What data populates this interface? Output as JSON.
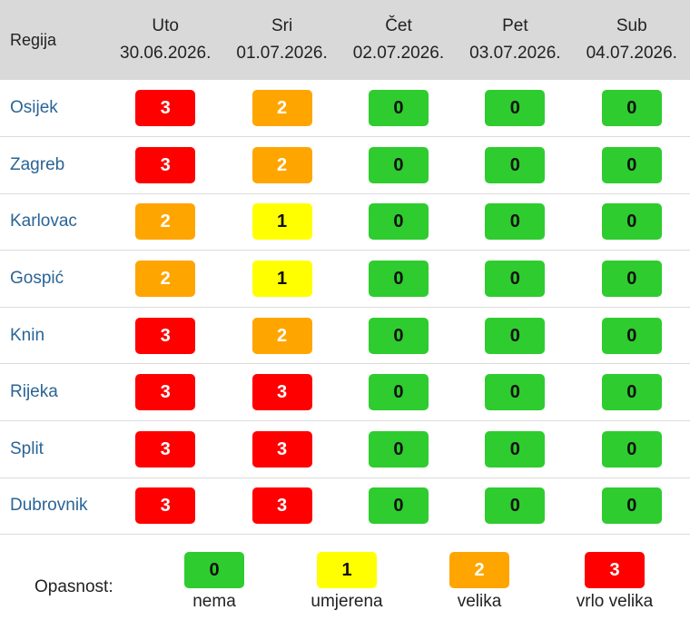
{
  "table": {
    "region_header": "Regija",
    "days": [
      {
        "name": "Uto",
        "date": "30.06.2026."
      },
      {
        "name": "Sri",
        "date": "01.07.2026."
      },
      {
        "name": "Čet",
        "date": "02.07.2026."
      },
      {
        "name": "Pet",
        "date": "03.07.2026."
      },
      {
        "name": "Sub",
        "date": "04.07.2026."
      }
    ],
    "rows": [
      {
        "region": "Osijek",
        "levels": [
          "3",
          "2",
          "0",
          "0",
          "0"
        ]
      },
      {
        "region": "Zagreb",
        "levels": [
          "3",
          "2",
          "0",
          "0",
          "0"
        ]
      },
      {
        "region": "Karlovac",
        "levels": [
          "2",
          "1",
          "0",
          "0",
          "0"
        ]
      },
      {
        "region": "Gospić",
        "levels": [
          "2",
          "1",
          "0",
          "0",
          "0"
        ]
      },
      {
        "region": "Knin",
        "levels": [
          "3",
          "2",
          "0",
          "0",
          "0"
        ]
      },
      {
        "region": "Rijeka",
        "levels": [
          "3",
          "3",
          "0",
          "0",
          "0"
        ]
      },
      {
        "region": "Split",
        "levels": [
          "3",
          "3",
          "0",
          "0",
          "0"
        ]
      },
      {
        "region": "Dubrovnik",
        "levels": [
          "3",
          "3",
          "0",
          "0",
          "0"
        ]
      }
    ]
  },
  "legend": {
    "label": "Opasnost:",
    "items": [
      {
        "value": "0",
        "text": "nema"
      },
      {
        "value": "1",
        "text": "umjerena"
      },
      {
        "value": "2",
        "text": "velika"
      },
      {
        "value": "3",
        "text": "vrlo velika"
      }
    ]
  },
  "colors": {
    "level_0": "#2ecc2e",
    "level_1": "#ffff00",
    "level_2": "#ffa500",
    "level_3": "#ff0000",
    "header_bg": "#d9d9d9",
    "region_link": "#2a6496"
  }
}
